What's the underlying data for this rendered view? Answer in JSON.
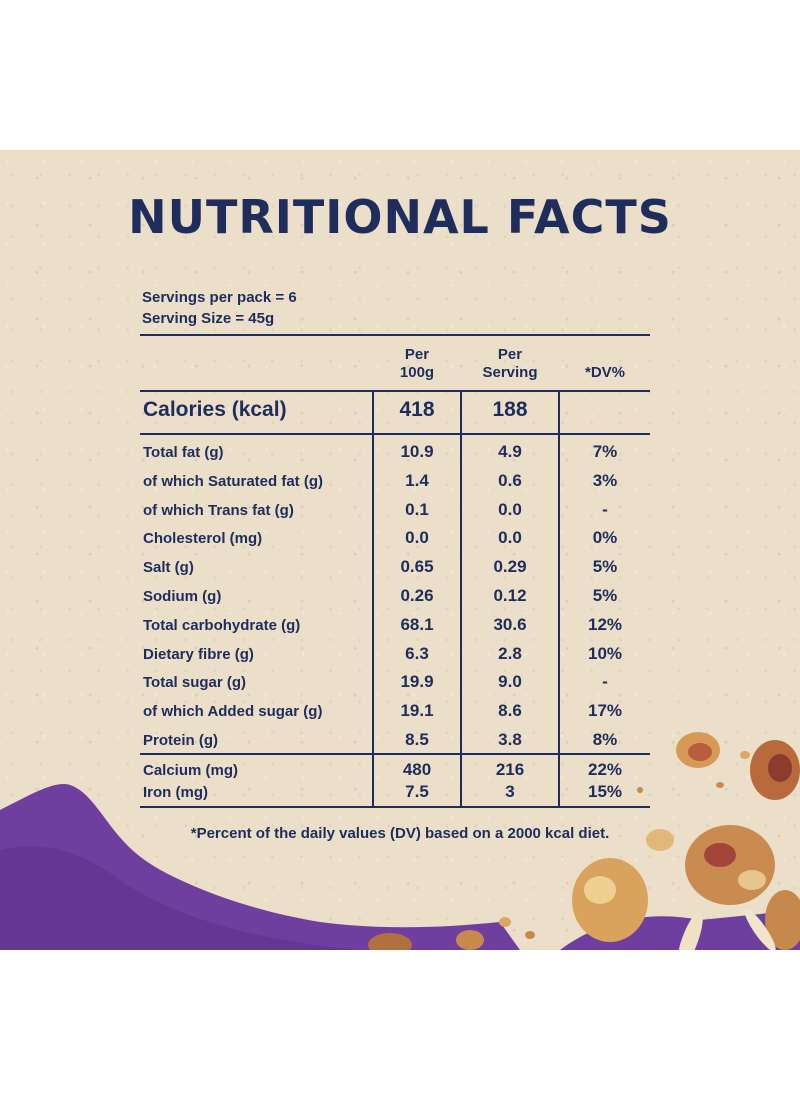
{
  "title": "NUTRITIONAL FACTS",
  "servings_per_pack": "Servings per pack = 6",
  "serving_size": "Serving Size = 45g",
  "headers": {
    "per100": "Per\n100g",
    "perServing": "Per\nServing",
    "dv": "*DV%"
  },
  "calories": {
    "label": "Calories (kcal)",
    "per100": "418",
    "perServing": "188",
    "dv": ""
  },
  "rows": [
    {
      "label": "Total fat (g)",
      "per100": "10.9",
      "perServing": "4.9",
      "dv": "7%"
    },
    {
      "label": "of which Saturated fat (g)",
      "per100": "1.4",
      "perServing": "0.6",
      "dv": "3%"
    },
    {
      "label": "of which Trans fat (g)",
      "per100": "0.1",
      "perServing": "0.0",
      "dv": "-"
    },
    {
      "label": "Cholesterol (mg)",
      "per100": "0.0",
      "perServing": "0.0",
      "dv": "0%"
    },
    {
      "label": "Salt (g)",
      "per100": "0.65",
      "perServing": "0.29",
      "dv": "5%"
    },
    {
      "label": "Sodium (g)",
      "per100": "0.26",
      "perServing": "0.12",
      "dv": "5%"
    },
    {
      "label": "Total carbohydrate (g)",
      "per100": "68.1",
      "perServing": "30.6",
      "dv": "12%"
    },
    {
      "label": "Dietary fibre (g)",
      "per100": "6.3",
      "perServing": "2.8",
      "dv": "10%"
    },
    {
      "label": "Total sugar (g)",
      "per100": "19.9",
      "perServing": "9.0",
      "dv": "-"
    },
    {
      "label": "of which Added sugar (g)",
      "per100": "19.1",
      "perServing": "8.6",
      "dv": "17%"
    },
    {
      "label": "Protein (g)",
      "per100": "8.5",
      "perServing": "3.8",
      "dv": "8%"
    }
  ],
  "minerals": [
    {
      "label": "Calcium (mg)",
      "per100": "480",
      "perServing": "216",
      "dv": "22%"
    },
    {
      "label": "Iron (mg)",
      "per100": "7.5",
      "perServing": "3",
      "dv": "15%"
    }
  ],
  "footnote": "*Percent of the daily values (DV) based on a 2000 kcal diet.",
  "colors": {
    "text": "#1e2d5c",
    "background": "#ecdfca",
    "purple": "#6e3f9f"
  }
}
